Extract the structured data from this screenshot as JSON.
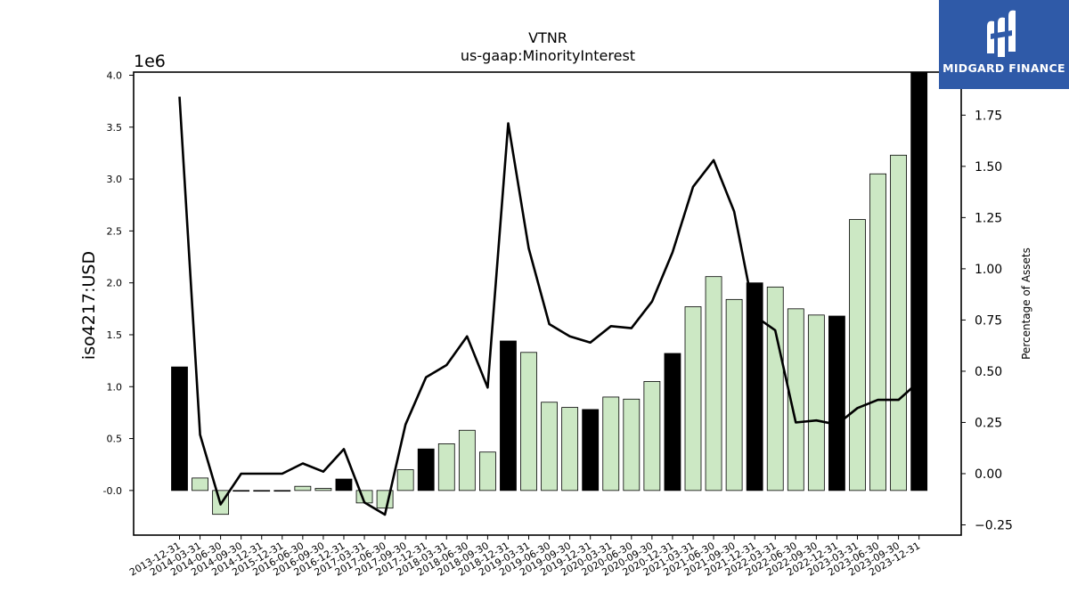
{
  "chart_data": {
    "type": "bar",
    "title": "VTNR",
    "subtitle": "us-gaap:MinorityInterest",
    "ylabel": "iso4217:USD",
    "ylabel_right": "Percentage of Assets",
    "y_offset_label": "1e6",
    "ylim": [
      -0.43,
      4.03
    ],
    "ylim_right": [
      -0.3,
      1.96
    ],
    "yticks": [
      "-0.0",
      "0.5",
      "1.0",
      "1.5",
      "2.0",
      "2.5",
      "3.0",
      "3.5",
      "4.0"
    ],
    "yticks_right": [
      "−0.25",
      "0.00",
      "0.25",
      "0.50",
      "0.75",
      "1.00",
      "1.25",
      "1.50",
      "1.75"
    ],
    "categories": [
      "2013-12-31",
      "2014-03-31",
      "2014-06-30",
      "2014-09-30",
      "2014-12-31",
      "2015-12-31",
      "2016-06-30",
      "2016-09-30",
      "2016-12-31",
      "2017-03-31",
      "2017-06-30",
      "2017-09-30",
      "2017-12-31",
      "2018-03-31",
      "2018-06-30",
      "2018-09-30",
      "2018-12-31",
      "2019-03-31",
      "2019-06-30",
      "2019-09-30",
      "2019-12-31",
      "2020-03-31",
      "2020-06-30",
      "2020-09-30",
      "2020-12-31",
      "2021-03-31",
      "2021-06-30",
      "2021-09-30",
      "2021-12-31",
      "2022-03-31",
      "2022-06-30",
      "2022-09-30",
      "2022-12-31",
      "2023-03-31",
      "2023-06-30",
      "2023-09-30",
      "2023-12-31"
    ],
    "series": [
      {
        "values": [
          1.19,
          0.12,
          -0.23,
          0.0,
          0.0,
          0.0,
          0.04,
          0.02,
          0.11,
          -0.12,
          -0.17,
          0.2,
          0.4,
          0.45,
          0.58,
          0.37,
          1.44,
          1.33,
          0.85,
          0.8,
          0.78,
          0.9,
          0.88,
          1.05,
          1.32,
          1.77,
          2.06,
          1.84,
          2.0,
          1.96,
          1.75,
          1.69,
          1.68,
          2.61,
          3.05,
          3.23,
          4.05
        ],
        "year_end": [
          true,
          false,
          false,
          false,
          true,
          true,
          false,
          false,
          true,
          false,
          false,
          false,
          true,
          false,
          false,
          false,
          true,
          false,
          false,
          false,
          true,
          false,
          false,
          false,
          true,
          false,
          false,
          false,
          true,
          false,
          false,
          false,
          true,
          false,
          false,
          false,
          true
        ]
      },
      {
        "name": "Percentage of Assets",
        "values": [
          1.84,
          0.19,
          -0.15,
          0.0,
          0.0,
          0.0,
          0.05,
          0.01,
          0.12,
          -0.14,
          -0.2,
          0.24,
          0.47,
          0.53,
          0.67,
          0.42,
          1.71,
          1.1,
          0.73,
          0.67,
          0.64,
          0.72,
          0.71,
          0.84,
          1.08,
          1.4,
          1.53,
          1.28,
          0.77,
          0.7,
          0.25,
          0.26,
          0.24,
          0.32,
          0.36,
          0.36,
          0.45
        ]
      }
    ],
    "colors": {
      "year_end_bar": "#000000",
      "quarter_bar": "#cce8c4",
      "bar_edge": "#000000",
      "line": "#000000"
    },
    "grid": false
  },
  "logo": {
    "text": "MIDGARD FINANCE",
    "icon": "midgard-logo-icon",
    "background": "#2f5aa8"
  }
}
